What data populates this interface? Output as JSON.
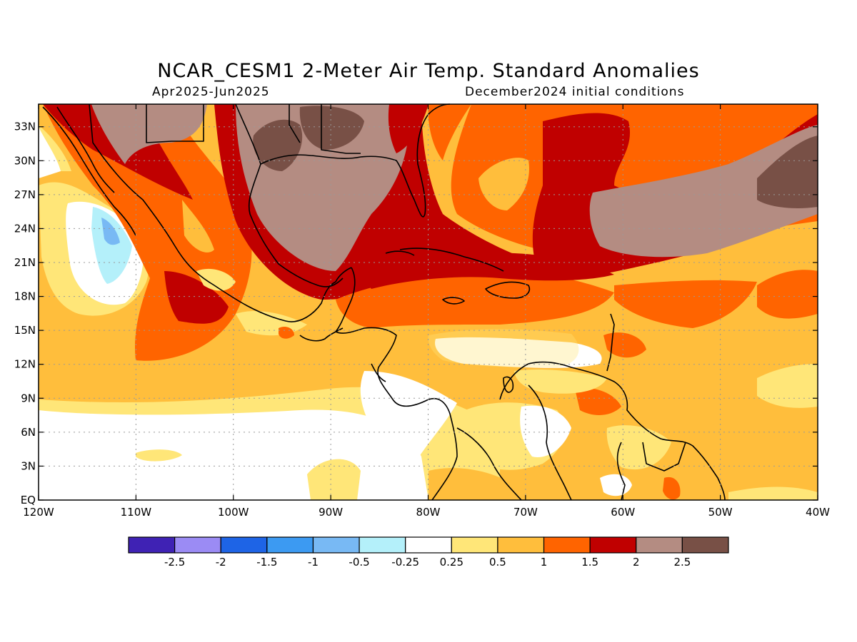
{
  "title": "NCAR_CESM1 2-Meter Air Temp. Standard Anomalies",
  "subtitle_left": "Apr2025-Jun2025",
  "subtitle_right": "December2024 initial conditions",
  "lat_labels": [
    "EQ",
    "3N",
    "6N",
    "9N",
    "12N",
    "15N",
    "18N",
    "21N",
    "24N",
    "27N",
    "30N",
    "33N"
  ],
  "lon_labels": [
    "120W",
    "110W",
    "100W",
    "90W",
    "80W",
    "70W",
    "60W",
    "50W",
    "40W"
  ],
  "colorbar": {
    "colors": [
      "#3f22b4",
      "#9b8bf4",
      "#1e64e6",
      "#3c9af2",
      "#78b9f4",
      "#b4f0fa",
      "#ffffff",
      "#ffe678",
      "#ffbe3c",
      "#ff6400",
      "#c00000",
      "#b48c82",
      "#785046"
    ],
    "labels": [
      "-2.5",
      "-2",
      "-1.5",
      "-1",
      "-0.5",
      "-0.25",
      "0.25",
      "0.5",
      "1",
      "1.5",
      "2",
      "2.5"
    ]
  },
  "color_legend": {
    "white": "neutral -0.25..0.25",
    "light_yellow": "0.25..0.5",
    "orange_light": "0.5..1",
    "orange": "1..1.5",
    "red": "1.5..2",
    "mauve": "2..2.5",
    "brown": ">2.5"
  }
}
